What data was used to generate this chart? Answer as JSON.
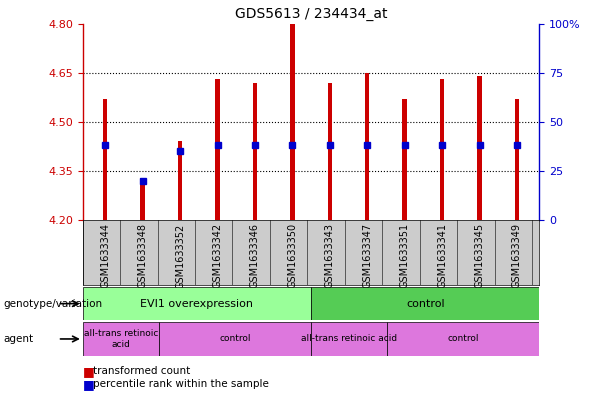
{
  "title": "GDS5613 / 234434_at",
  "samples": [
    "GSM1633344",
    "GSM1633348",
    "GSM1633352",
    "GSM1633342",
    "GSM1633346",
    "GSM1633350",
    "GSM1633343",
    "GSM1633347",
    "GSM1633351",
    "GSM1633341",
    "GSM1633345",
    "GSM1633349"
  ],
  "transformed_count": [
    4.57,
    4.33,
    4.44,
    4.63,
    4.62,
    4.8,
    4.62,
    4.65,
    4.57,
    4.63,
    4.64,
    4.57
  ],
  "percentile_rank_pct": [
    38,
    20,
    35,
    38,
    38,
    38,
    38,
    38,
    38,
    38,
    38,
    38
  ],
  "base_value": 4.2,
  "ylim": [
    4.2,
    4.8
  ],
  "yticks": [
    4.2,
    4.35,
    4.5,
    4.65,
    4.8
  ],
  "right_yticks": [
    0,
    25,
    50,
    75,
    100
  ],
  "bar_color": "#cc0000",
  "percentile_color": "#0000cc",
  "left_tick_color": "#cc0000",
  "right_tick_color": "#0000cc",
  "bar_width": 0.12,
  "genotype_groups": [
    {
      "label": "EVI1 overexpression",
      "start": 0,
      "end": 6,
      "color": "#99ff99"
    },
    {
      "label": "control",
      "start": 6,
      "end": 12,
      "color": "#55cc55"
    }
  ],
  "agent_groups": [
    {
      "label": "all-trans retinoic\nacid",
      "start": 0,
      "end": 2
    },
    {
      "label": "control",
      "start": 2,
      "end": 6
    },
    {
      "label": "all-trans retinoic acid",
      "start": 6,
      "end": 8
    },
    {
      "label": "control",
      "start": 8,
      "end": 12
    }
  ],
  "agent_color": "#dd77dd",
  "sample_bg_color": "#cccccc",
  "fig_width": 6.13,
  "fig_height": 3.93
}
